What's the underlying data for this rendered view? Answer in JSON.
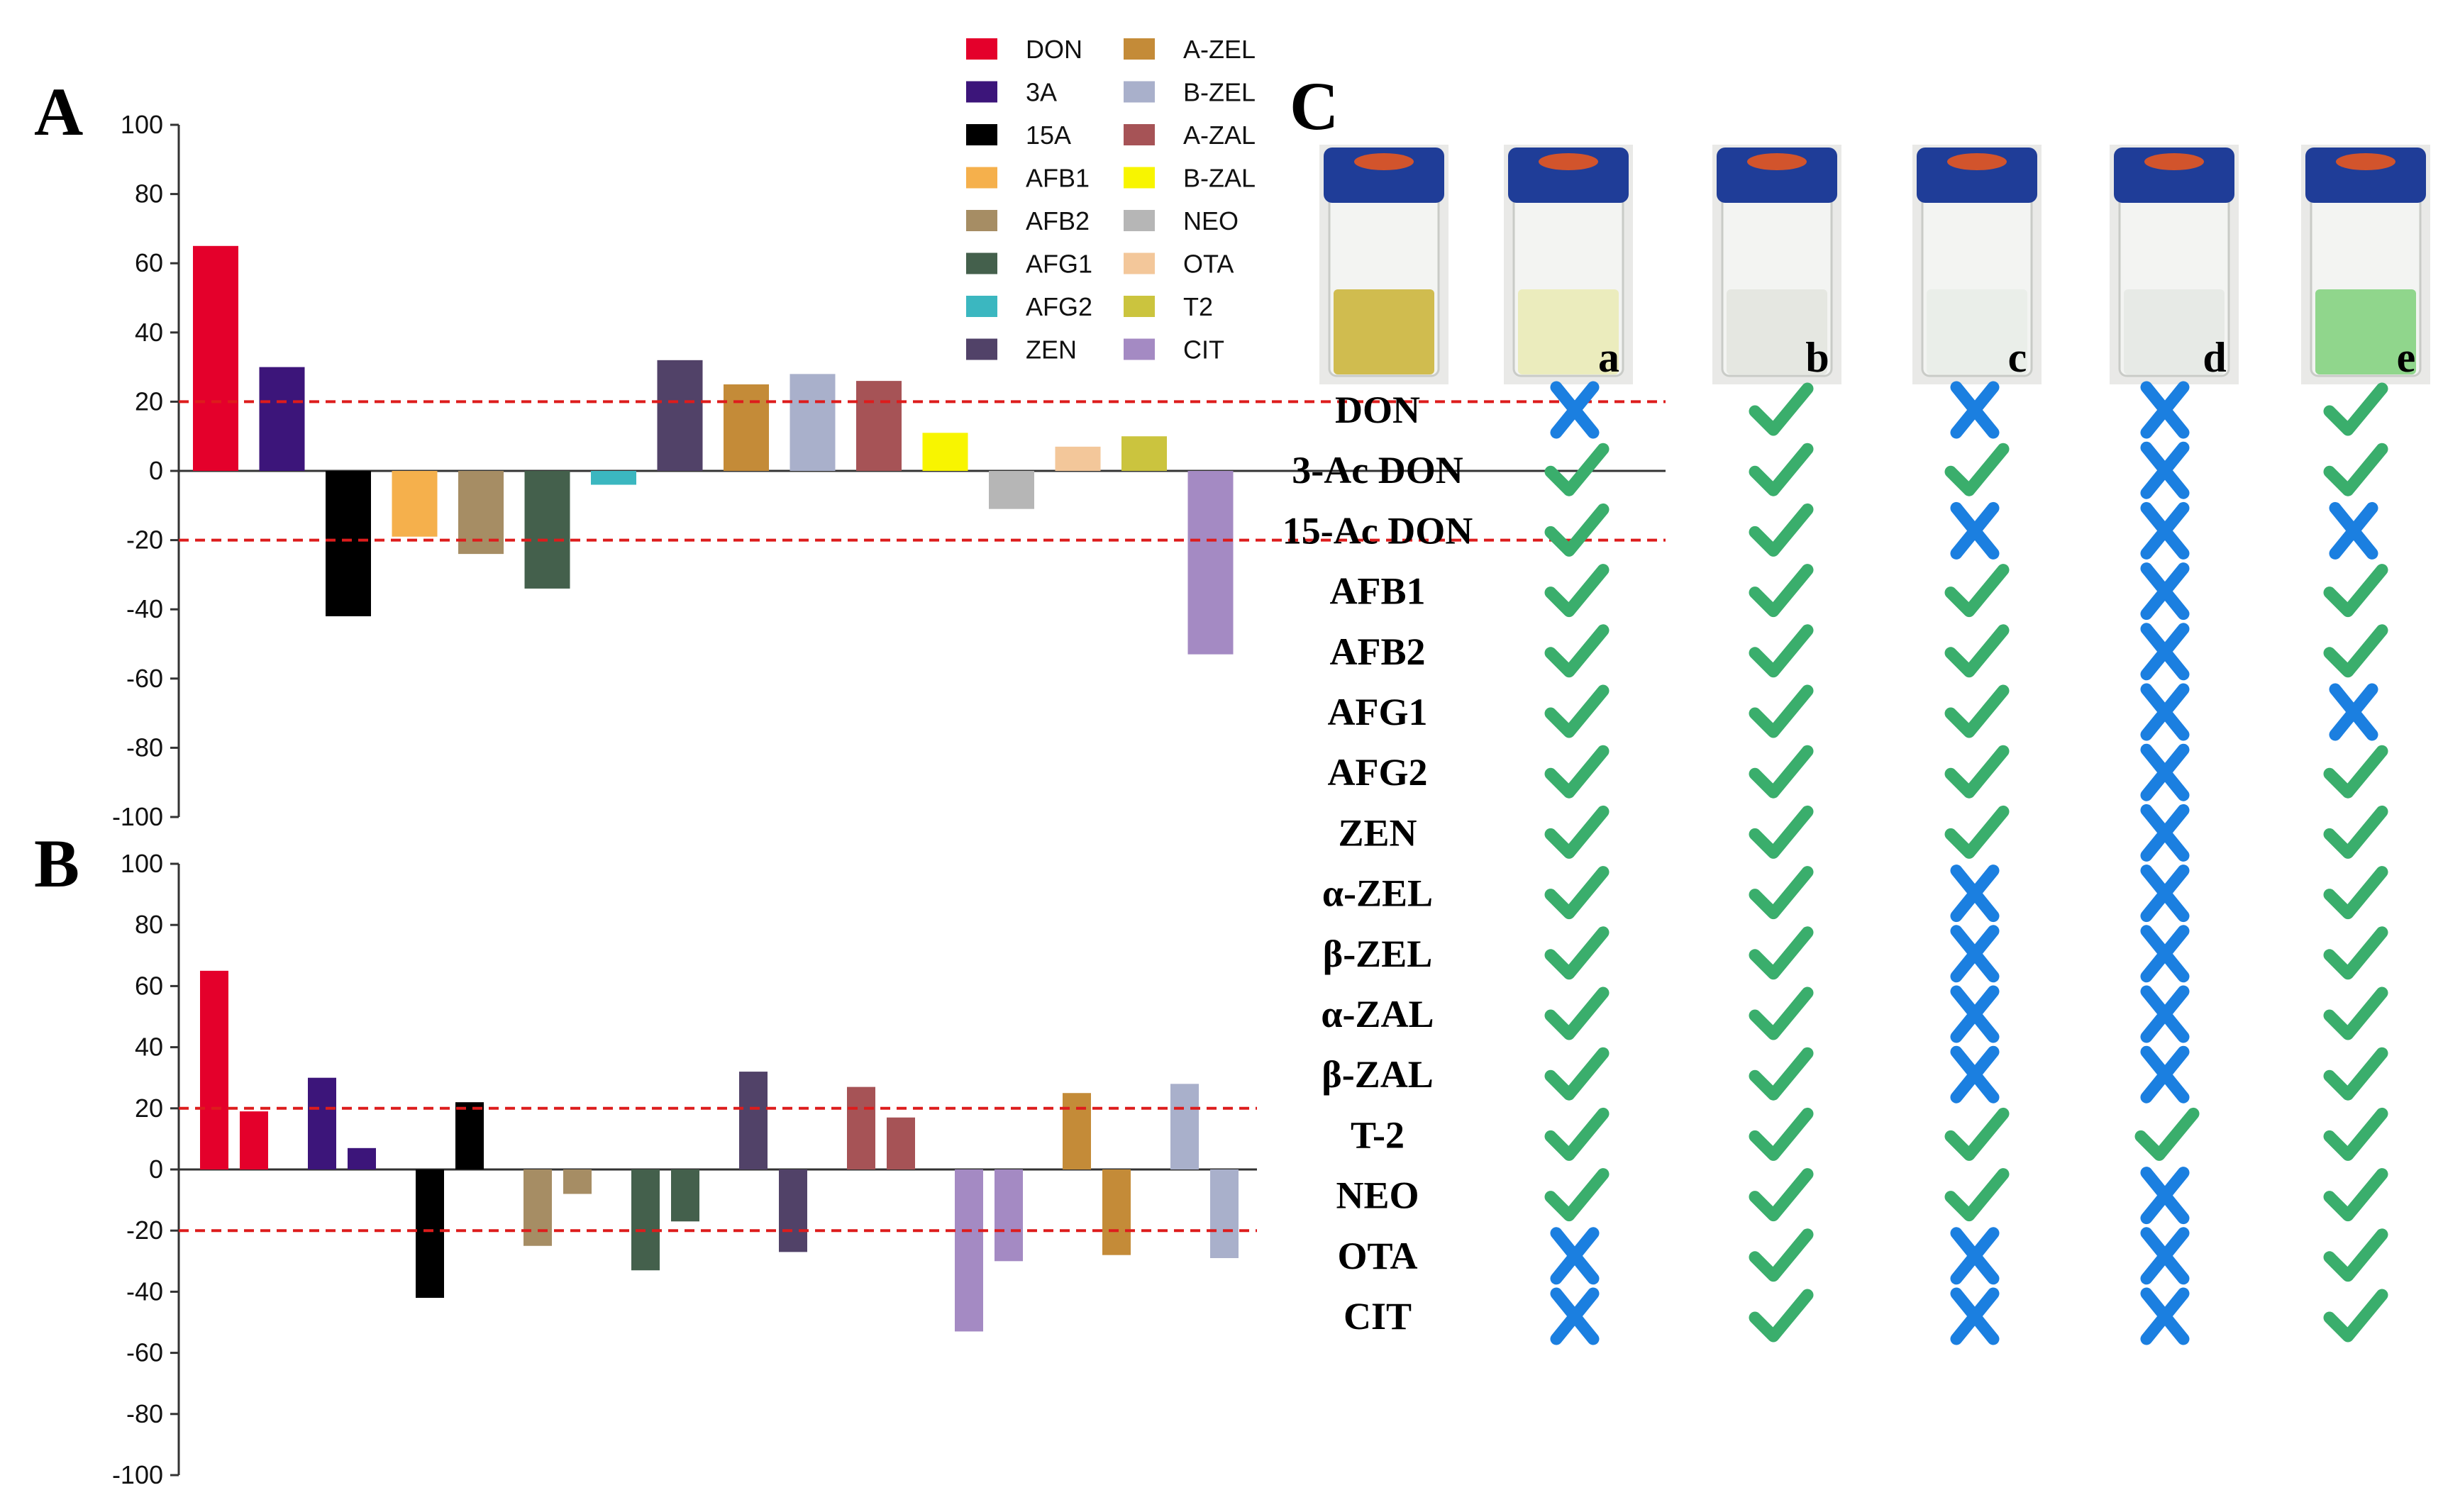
{
  "chart_data": [
    {
      "panel": "A",
      "type": "bar",
      "ylim": [
        -100,
        100
      ],
      "yticks": [
        "100",
        "80",
        "60",
        "40",
        "20",
        "0",
        "-20",
        "-40",
        "-60",
        "-80",
        "-100"
      ],
      "reference_lines": [
        20,
        -20
      ],
      "categories": [
        "DON",
        "3A",
        "15A",
        "AFB1",
        "AFB2",
        "AFG1",
        "AFG2",
        "ZEN",
        "A-ZEL",
        "B-ZEL",
        "A-ZAL",
        "B-ZAL",
        "NEO",
        "OTA",
        "T2",
        "CIT"
      ],
      "values": [
        65,
        30,
        -42,
        -19,
        -24,
        -34,
        -4,
        32,
        25,
        28,
        26,
        11,
        -11,
        7,
        10,
        -53
      ],
      "colors": [
        "#e4002b",
        "#3c157a",
        "#000000",
        "#f5b04c",
        "#a68d64",
        "#44604c",
        "#3bb7c0",
        "#514268",
        "#c48b38",
        "#a9b0cb",
        "#a65356",
        "#f8f500",
        "#b6b6b6",
        "#f3c79a",
        "#cbc43e",
        "#a48ac3"
      ]
    },
    {
      "panel": "B",
      "type": "bar",
      "ylim": [
        -100,
        100
      ],
      "yticks": [
        "100",
        "80",
        "60",
        "40",
        "20",
        "0",
        "-20",
        "-40",
        "-60",
        "-80",
        "-100"
      ],
      "reference_lines": [
        20,
        -20
      ],
      "series_label": "paired bars",
      "categories": [
        "DON",
        "3A",
        "15A",
        "AFB2",
        "AFG1",
        "ZEN",
        "A-ZAL",
        "CIT",
        "A-ZEL",
        "B-ZEL"
      ],
      "bars": [
        {
          "category": "DON",
          "values": [
            65,
            19
          ]
        },
        {
          "category": "3A",
          "values": [
            30,
            7
          ]
        },
        {
          "category": "15A",
          "values": [
            -42,
            22
          ]
        },
        {
          "category": "AFB2",
          "values": [
            -25,
            -8
          ]
        },
        {
          "category": "AFG1",
          "values": [
            -33,
            -17
          ]
        },
        {
          "category": "ZEN",
          "values": [
            32,
            -27
          ]
        },
        {
          "category": "A-ZAL",
          "values": [
            27,
            17
          ]
        },
        {
          "category": "CIT",
          "values": [
            -53,
            -30
          ]
        },
        {
          "category": "A-ZEL",
          "values": [
            25,
            -28
          ]
        },
        {
          "category": "B-ZEL",
          "values": [
            28,
            -29
          ]
        }
      ]
    }
  ],
  "panels": {
    "a": "A",
    "b": "B",
    "c": "C"
  },
  "legend": [
    {
      "label": "DON",
      "color": "#e4002b"
    },
    {
      "label": "3A",
      "color": "#3c157a"
    },
    {
      "label": "15A",
      "color": "#000000"
    },
    {
      "label": "AFB1",
      "color": "#f5b04c"
    },
    {
      "label": "AFB2",
      "color": "#a68d64"
    },
    {
      "label": "AFG1",
      "color": "#44604c"
    },
    {
      "label": "AFG2",
      "color": "#3bb7c0"
    },
    {
      "label": "ZEN",
      "color": "#514268"
    },
    {
      "label": "A-ZEL",
      "color": "#c48b38"
    },
    {
      "label": "B-ZEL",
      "color": "#a9b0cb"
    },
    {
      "label": "A-ZAL",
      "color": "#a65356"
    },
    {
      "label": "B-ZAL",
      "color": "#f8f500"
    },
    {
      "label": "NEO",
      "color": "#b6b6b6"
    },
    {
      "label": "OTA",
      "color": "#f3c79a"
    },
    {
      "label": "T2",
      "color": "#cbc43e"
    },
    {
      "label": "CIT",
      "color": "#a48ac3"
    }
  ],
  "panel_c": {
    "vials": [
      {
        "letter": "",
        "liquid": "#c9b233"
      },
      {
        "letter": "a",
        "liquid": "#e9eab4"
      },
      {
        "letter": "b",
        "liquid": "#e2e4de"
      },
      {
        "letter": "c",
        "liquid": "#e8ece8"
      },
      {
        "letter": "d",
        "liquid": "#e4e8e4"
      },
      {
        "letter": "e",
        "liquid": "#7ed07a"
      }
    ],
    "rows": [
      "DON",
      "3-Ac DON",
      "15-Ac DON",
      "AFB1",
      "AFB2",
      "AFG1",
      "AFG2",
      "ZEN",
      "α-ZEL",
      "β-ZEL",
      "α-ZAL",
      "β-ZAL",
      "T-2",
      "NEO",
      "OTA",
      "CIT"
    ],
    "marks": [
      [
        "x",
        "c",
        "x",
        "x",
        "c"
      ],
      [
        "c",
        "c",
        "c",
        "x",
        "c"
      ],
      [
        "c",
        "c",
        "x",
        "x",
        "x"
      ],
      [
        "c",
        "c",
        "c",
        "x",
        "c"
      ],
      [
        "c",
        "c",
        "c",
        "x",
        "c"
      ],
      [
        "c",
        "c",
        "c",
        "x",
        "x"
      ],
      [
        "c",
        "c",
        "c",
        "x",
        "c"
      ],
      [
        "c",
        "c",
        "c",
        "x",
        "c"
      ],
      [
        "c",
        "c",
        "x",
        "x",
        "c"
      ],
      [
        "c",
        "c",
        "x",
        "x",
        "c"
      ],
      [
        "c",
        "c",
        "x",
        "x",
        "c"
      ],
      [
        "c",
        "c",
        "x",
        "x",
        "c"
      ],
      [
        "c",
        "c",
        "c",
        "c",
        "c"
      ],
      [
        "c",
        "c",
        "c",
        "x",
        "c"
      ],
      [
        "x",
        "c",
        "x",
        "x",
        "c"
      ],
      [
        "x",
        "c",
        "x",
        "x",
        "c"
      ]
    ],
    "check_color": "#3aae6c",
    "cross_color": "#1b7fe0"
  }
}
